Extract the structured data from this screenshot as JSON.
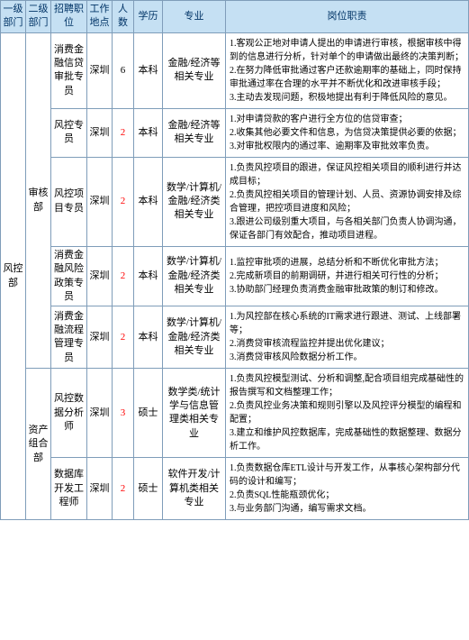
{
  "headers": {
    "dept1": "一级部门",
    "dept2": "二级部门",
    "position": "招聘职位",
    "location": "工作地点",
    "count": "人数",
    "edu": "学历",
    "major": "专业",
    "duties": "岗位职责"
  },
  "dept1": {
    "name": "风控部"
  },
  "dept2": {
    "audit": "审核部",
    "asset": "资产组合部"
  },
  "rows": [
    {
      "position": "消费金融信贷审批专员",
      "location": "深圳",
      "count": "6",
      "count_color": "#000000",
      "edu": "本科",
      "major": "金融/经济等相关专业",
      "duties": "1.客观公正地对申请人提出的申请进行审核，根据审核中得到的信息进行分析，针对单个的申请做出最终的决策判断；\n2.在努力降低审批通过客户还款逾期率的基础上，同时保持审批通过率在合理的水平并不断优化和改进审核手段；\n3.主动去发现问题，积极地提出有利于降低风险的意见。"
    },
    {
      "position": "风控专员",
      "location": "深圳",
      "count": "2",
      "count_color": "#ff0000",
      "edu": "本科",
      "major": "金融/经济等相关专业",
      "duties": "1.对申请贷款的客户进行全方位的信贷审查；\n2.收集其他必要文件和信息，为信贷决策提供必要的依据；\n3.对审批权限内的通过率、逾期率及审批效率负责。"
    },
    {
      "position": "风控项目专员",
      "location": "深圳",
      "count": "2",
      "count_color": "#ff0000",
      "edu": "本科",
      "major": "数学/计算机/金融/经济类相关专业",
      "duties": "1.负责风控项目的跟进，保证风控相关项目的顺利进行并达成目标；\n2.负责风控相关项目的管理计划、人员、资源协调安排及综合管理，把控项目进度和风险；\n3.跟进公司级别重大项目，与各相关部门负责人协调沟通，保证各部门有效配合，推动项目进程。"
    },
    {
      "position": "消费金融风险政策专员",
      "location": "深圳",
      "count": "2",
      "count_color": "#ff0000",
      "edu": "本科",
      "major": "数学/计算机/金融/经济类相关专业",
      "duties": "1.监控审批项的进展，总结分析和不断优化审批方法；\n2.完成新项目的前期调研，并进行相关可行性的分析；\n3.协助部门经理负责消费金融审批政策的制订和修改。"
    },
    {
      "position": "消费金融流程管理专员",
      "location": "深圳",
      "count": "2",
      "count_color": "#ff0000",
      "edu": "本科",
      "major": "数学/计算机/金融/经济类相关专业",
      "duties": "1.为风控部在核心系统的IT需求进行跟进、测试、上线部署等；\n2.消费贷审核流程监控并提出优化建议；\n3.消费贷审核风险数据分析工作。"
    },
    {
      "position": "风控数据分析师",
      "location": "深圳",
      "count": "3",
      "count_color": "#ff0000",
      "edu": "硕士",
      "major": "数学类/统计学与信息管理类相关专业",
      "duties": "1.负责风控模型测试、分析和调整,配合项目组完成基础性的报告撰写和文档整理工作；\n2.负责风控业务决策和规则引擎以及风控评分模型的编程和配置；\n3.建立和维护风控数据库，完成基础性的数据整理、数据分析工作。"
    },
    {
      "position": "数据库开发工程师",
      "location": "深圳",
      "count": "2",
      "count_color": "#ff0000",
      "edu": "硕士",
      "major": "软件开发/计算机类相关专业",
      "duties": "1.负责数据仓库ETL设计与开发工作，从事核心架构部分代码的设计和编写；\n2.负责SQL性能瓶颈优化；\n3.与业务部门沟通，编写需求文档。"
    }
  ]
}
